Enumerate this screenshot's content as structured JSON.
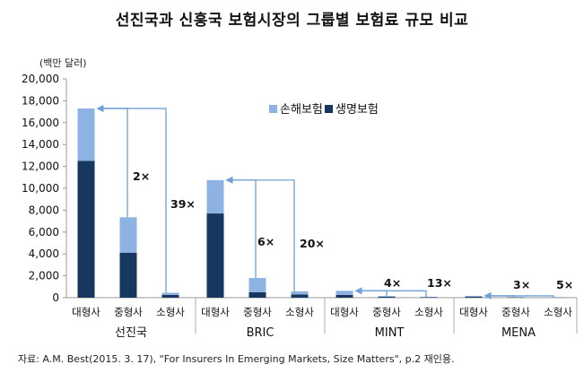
{
  "chart_data": {
    "type": "bar",
    "stacked": true,
    "title": "선진국과 신흥국 보험시장의 그룹별 보험료 규모 비교",
    "unit_label": "(백만 달러)",
    "ylim": [
      0,
      20000
    ],
    "yticks": [
      "0",
      "2,000",
      "4,000",
      "6,000",
      "8,000",
      "10,000",
      "12,000",
      "14,000",
      "16,000",
      "18,000",
      "20,000"
    ],
    "grid": false,
    "legend_position": "top-right",
    "colors": {
      "nonlife": "#8db3e2",
      "life": "#17375e",
      "arrow": "#6fa0d6"
    },
    "groups": [
      {
        "name": "선진국",
        "categories": [
          "대형사",
          "중형사",
          "소형사"
        ]
      },
      {
        "name": "BRIC",
        "categories": [
          "대형사",
          "중형사",
          "소형사"
        ]
      },
      {
        "name": "MINT",
        "categories": [
          "대형사",
          "중형사",
          "소형사"
        ]
      },
      {
        "name": "MENA",
        "categories": [
          "대형사",
          "중형사",
          "소형사"
        ]
      }
    ],
    "series": [
      {
        "name": "생명보험",
        "key": "life",
        "values": [
          12500,
          4100,
          250,
          7700,
          500,
          300,
          250,
          80,
          40,
          80,
          30,
          20
        ]
      },
      {
        "name": "손해보험",
        "key": "nonlife",
        "values": [
          4800,
          3250,
          200,
          3050,
          1300,
          280,
          380,
          70,
          40,
          90,
          40,
          30
        ]
      }
    ],
    "legend_order": [
      "손해보험",
      "생명보험"
    ],
    "annotations": [
      "2×",
      "39×",
      "6×",
      "20×",
      "4×",
      "13×",
      "3×",
      "5×"
    ]
  },
  "source": "자료: A.M. Best(2015. 3. 17), \"For Insurers In Emerging Markets, Size Matters\", p.2 재인용."
}
